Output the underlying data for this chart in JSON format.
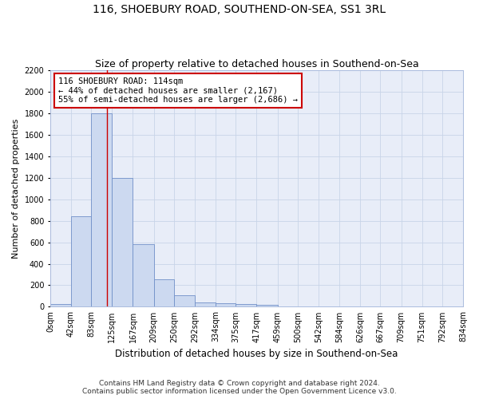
{
  "title": "116, SHOEBURY ROAD, SOUTHEND-ON-SEA, SS1 3RL",
  "subtitle": "Size of property relative to detached houses in Southend-on-Sea",
  "xlabel": "Distribution of detached houses by size in Southend-on-Sea",
  "ylabel": "Number of detached properties",
  "footer_line1": "Contains HM Land Registry data © Crown copyright and database right 2024.",
  "footer_line2": "Contains public sector information licensed under the Open Government Licence v3.0.",
  "annotation_line1": "116 SHOEBURY ROAD: 114sqm",
  "annotation_line2": "← 44% of detached houses are smaller (2,167)",
  "annotation_line3": "55% of semi-detached houses are larger (2,686) →",
  "bar_edges": [
    0,
    42,
    83,
    125,
    167,
    209,
    250,
    292,
    334,
    375,
    417,
    459,
    500,
    542,
    584,
    626,
    667,
    709,
    751,
    792,
    834
  ],
  "bar_heights": [
    25,
    840,
    1800,
    1200,
    580,
    255,
    110,
    40,
    35,
    25,
    20,
    0,
    0,
    0,
    0,
    0,
    0,
    0,
    0,
    0
  ],
  "bar_color": "#ccd9f0",
  "bar_edge_color": "#7090c8",
  "vline_x": 114,
  "vline_color": "#cc0000",
  "ylim": [
    0,
    2200
  ],
  "yticks": [
    0,
    200,
    400,
    600,
    800,
    1000,
    1200,
    1400,
    1600,
    1800,
    2000,
    2200
  ],
  "grid_color": "#c8d4e8",
  "bg_color": "#e8edf8",
  "annotation_box_color": "#cc0000",
  "title_fontsize": 10,
  "subtitle_fontsize": 9,
  "xlabel_fontsize": 8.5,
  "ylabel_fontsize": 8,
  "tick_fontsize": 7,
  "footer_fontsize": 6.5,
  "annotation_fontsize": 7.5
}
